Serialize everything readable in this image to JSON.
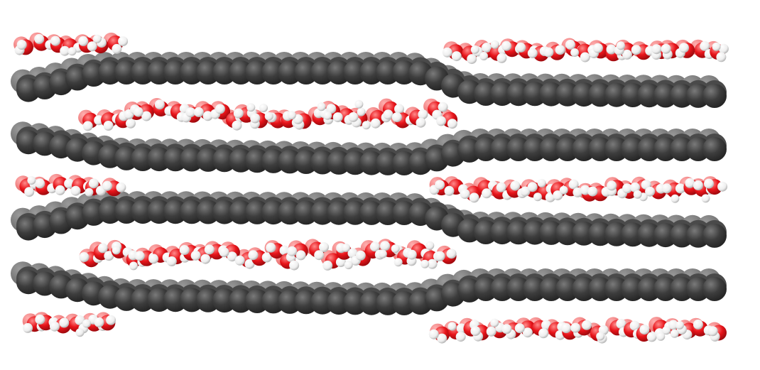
{
  "scene": {
    "description_visible_text": "",
    "colors": {
      "background": "#ffffff",
      "carbon": "#3d3d3d",
      "carbon_highlight": "#7a7a7a",
      "oxygen": "#e8141a",
      "oxygen_highlight": "#ff7a7a",
      "hydrogen": "#f2f2f2",
      "hydrogen_shade": "#b8b8b8"
    },
    "layers": [
      {
        "name": "graphene-sheet-1",
        "kind": "carbon"
      },
      {
        "name": "graphene-sheet-2",
        "kind": "carbon"
      },
      {
        "name": "graphene-sheet-3",
        "kind": "carbon"
      },
      {
        "name": "graphene-sheet-4",
        "kind": "carbon"
      },
      {
        "name": "water-layer-top-left",
        "kind": "water"
      },
      {
        "name": "water-layer-top-right",
        "kind": "water"
      },
      {
        "name": "water-layer-interlayer-1",
        "kind": "water"
      },
      {
        "name": "water-layer-mid-left",
        "kind": "water"
      },
      {
        "name": "water-layer-mid-right",
        "kind": "water"
      },
      {
        "name": "water-layer-interlayer-2",
        "kind": "water"
      },
      {
        "name": "water-layer-bottom-left",
        "kind": "water"
      },
      {
        "name": "water-layer-bottom-right",
        "kind": "water"
      }
    ]
  }
}
